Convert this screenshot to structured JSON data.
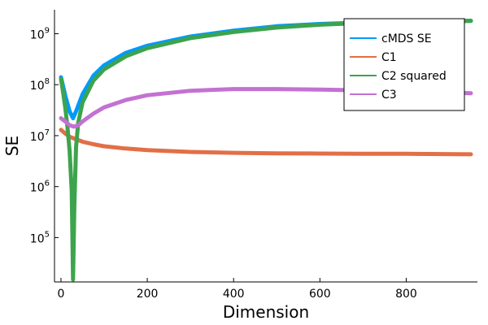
{
  "chart_data": {
    "type": "line",
    "xlabel": "Dimension",
    "ylabel": "SE",
    "xlim": [
      -15,
      965
    ],
    "ylim_log10": [
      4.13,
      9.47
    ],
    "y_scale": "log10",
    "xticks": [
      0,
      200,
      400,
      600,
      800
    ],
    "yticks_exponent": [
      5,
      6,
      7,
      8,
      9
    ],
    "y_tick_base": "10",
    "grid": false,
    "legend_position": "top-right",
    "series": [
      {
        "name": "cMDS SE",
        "color": "#009AFA",
        "x": [
          0,
          10,
          20,
          28,
          35,
          50,
          75,
          100,
          150,
          200,
          300,
          400,
          500,
          600,
          700,
          800,
          950
        ],
        "y": [
          140000000.0,
          60000000.0,
          30000000.0,
          22000000.0,
          30000000.0,
          65000000.0,
          150000000.0,
          240000000.0,
          420000000.0,
          580000000.0,
          880000000.0,
          1150000000.0,
          1400000000.0,
          1550000000.0,
          1650000000.0,
          1720000000.0,
          1800000000.0
        ]
      },
      {
        "name": "C1",
        "color": "#E26F46",
        "x": [
          0,
          10,
          20,
          30,
          50,
          75,
          100,
          150,
          200,
          300,
          400,
          500,
          600,
          700,
          800,
          950
        ],
        "y": [
          13000000.0,
          11000000.0,
          9500000.0,
          8800000.0,
          7600000.0,
          6800000.0,
          6200000.0,
          5600000.0,
          5200000.0,
          4800000.0,
          4600000.0,
          4500000.0,
          4450000.0,
          4400000.0,
          4400000.0,
          4300000.0
        ]
      },
      {
        "name": "C2 squared",
        "color": "#3DA44D",
        "x": [
          0,
          5,
          10,
          15,
          20,
          25,
          28,
          31,
          35,
          40,
          50,
          75,
          100,
          150,
          200,
          300,
          400,
          500,
          600,
          700,
          800,
          950
        ],
        "y": [
          130000000.0,
          70000000.0,
          35000000.0,
          15000000.0,
          5000000.0,
          800000.0,
          15000.0,
          400000.0,
          6000000.0,
          18000000.0,
          45000000.0,
          120000000.0,
          200000000.0,
          360000000.0,
          520000000.0,
          820000000.0,
          1080000000.0,
          1320000000.0,
          1500000000.0,
          1620000000.0,
          1700000000.0,
          1780000000.0
        ]
      },
      {
        "name": "C3",
        "color": "#C371D2",
        "x": [
          0,
          10,
          20,
          30,
          40,
          50,
          75,
          100,
          150,
          200,
          300,
          400,
          500,
          600,
          700,
          800,
          950
        ],
        "y": [
          22000000.0,
          19000000.0,
          16000000.0,
          15000000.0,
          16000000.0,
          19000000.0,
          27000000.0,
          36000000.0,
          50000000.0,
          62000000.0,
          76000000.0,
          82000000.0,
          82000000.0,
          80000000.0,
          77000000.0,
          74000000.0,
          68000000.0
        ]
      }
    ]
  }
}
